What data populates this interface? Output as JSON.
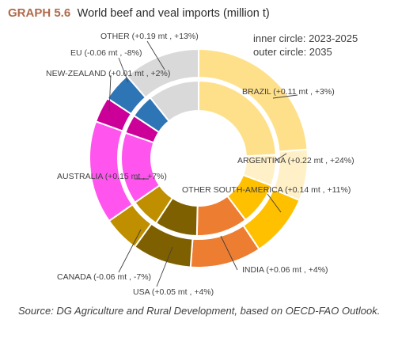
{
  "header": {
    "graph_number": "GRAPH 5.6",
    "title": "World beef and veal imports (million t)",
    "inner_note": "inner circle: 2023-2025",
    "outer_note": "outer circle: 2035"
  },
  "source": "Source: DG Agriculture and Rural Development, based on OECD-FAO Outlook.",
  "chart_data": {
    "type": "pie",
    "variant": "double-donut",
    "title": "World beef and veal imports (million t)",
    "rings": [
      "inner circle: 2023-2025",
      "outer circle: 2035"
    ],
    "categories": [
      "BRAZIL",
      "ARGENTINA",
      "OTHER SOUTH-AMERICA",
      "INDIA",
      "USA",
      "CANADA",
      "AUSTRALIA",
      "NEW-ZEALAND",
      "EU",
      "OTHER"
    ],
    "labels": [
      "BRAZIL (+0.11 mt , +3%)",
      "ARGENTINA (+0.22 mt , +24%)",
      "OTHER SOUTH-AMERICA (+0.14 mt , +11%)",
      "INDIA (+0.06 mt , +4%)",
      "USA (+0.05 mt , +4%)",
      "CANADA (-0.06 mt , -7%)",
      "AUSTRALIA (+0.15 mt , +7%)",
      "NEW-ZEALAND (+0.01 mt , +2%)",
      "EU (-0.06 mt , -8%)",
      "OTHER (+0.19 mt , +13%)"
    ],
    "colors": [
      "#ffe08a",
      "#fff0c8",
      "#ffc000",
      "#ed7d31",
      "#7f6000",
      "#bf8f00",
      "#ff55ee",
      "#cc0099",
      "#2e75b6",
      "#d9d9d9"
    ],
    "series": [
      {
        "values": [
          3.4,
          0.9,
          1.25,
          1.5,
          1.25,
          0.85,
          2.1,
          0.55,
          0.7,
          1.5
        ]
      },
      {
        "values": [
          3.51,
          1.12,
          1.39,
          1.56,
          1.3,
          0.79,
          2.25,
          0.56,
          0.64,
          1.69
        ]
      }
    ]
  }
}
